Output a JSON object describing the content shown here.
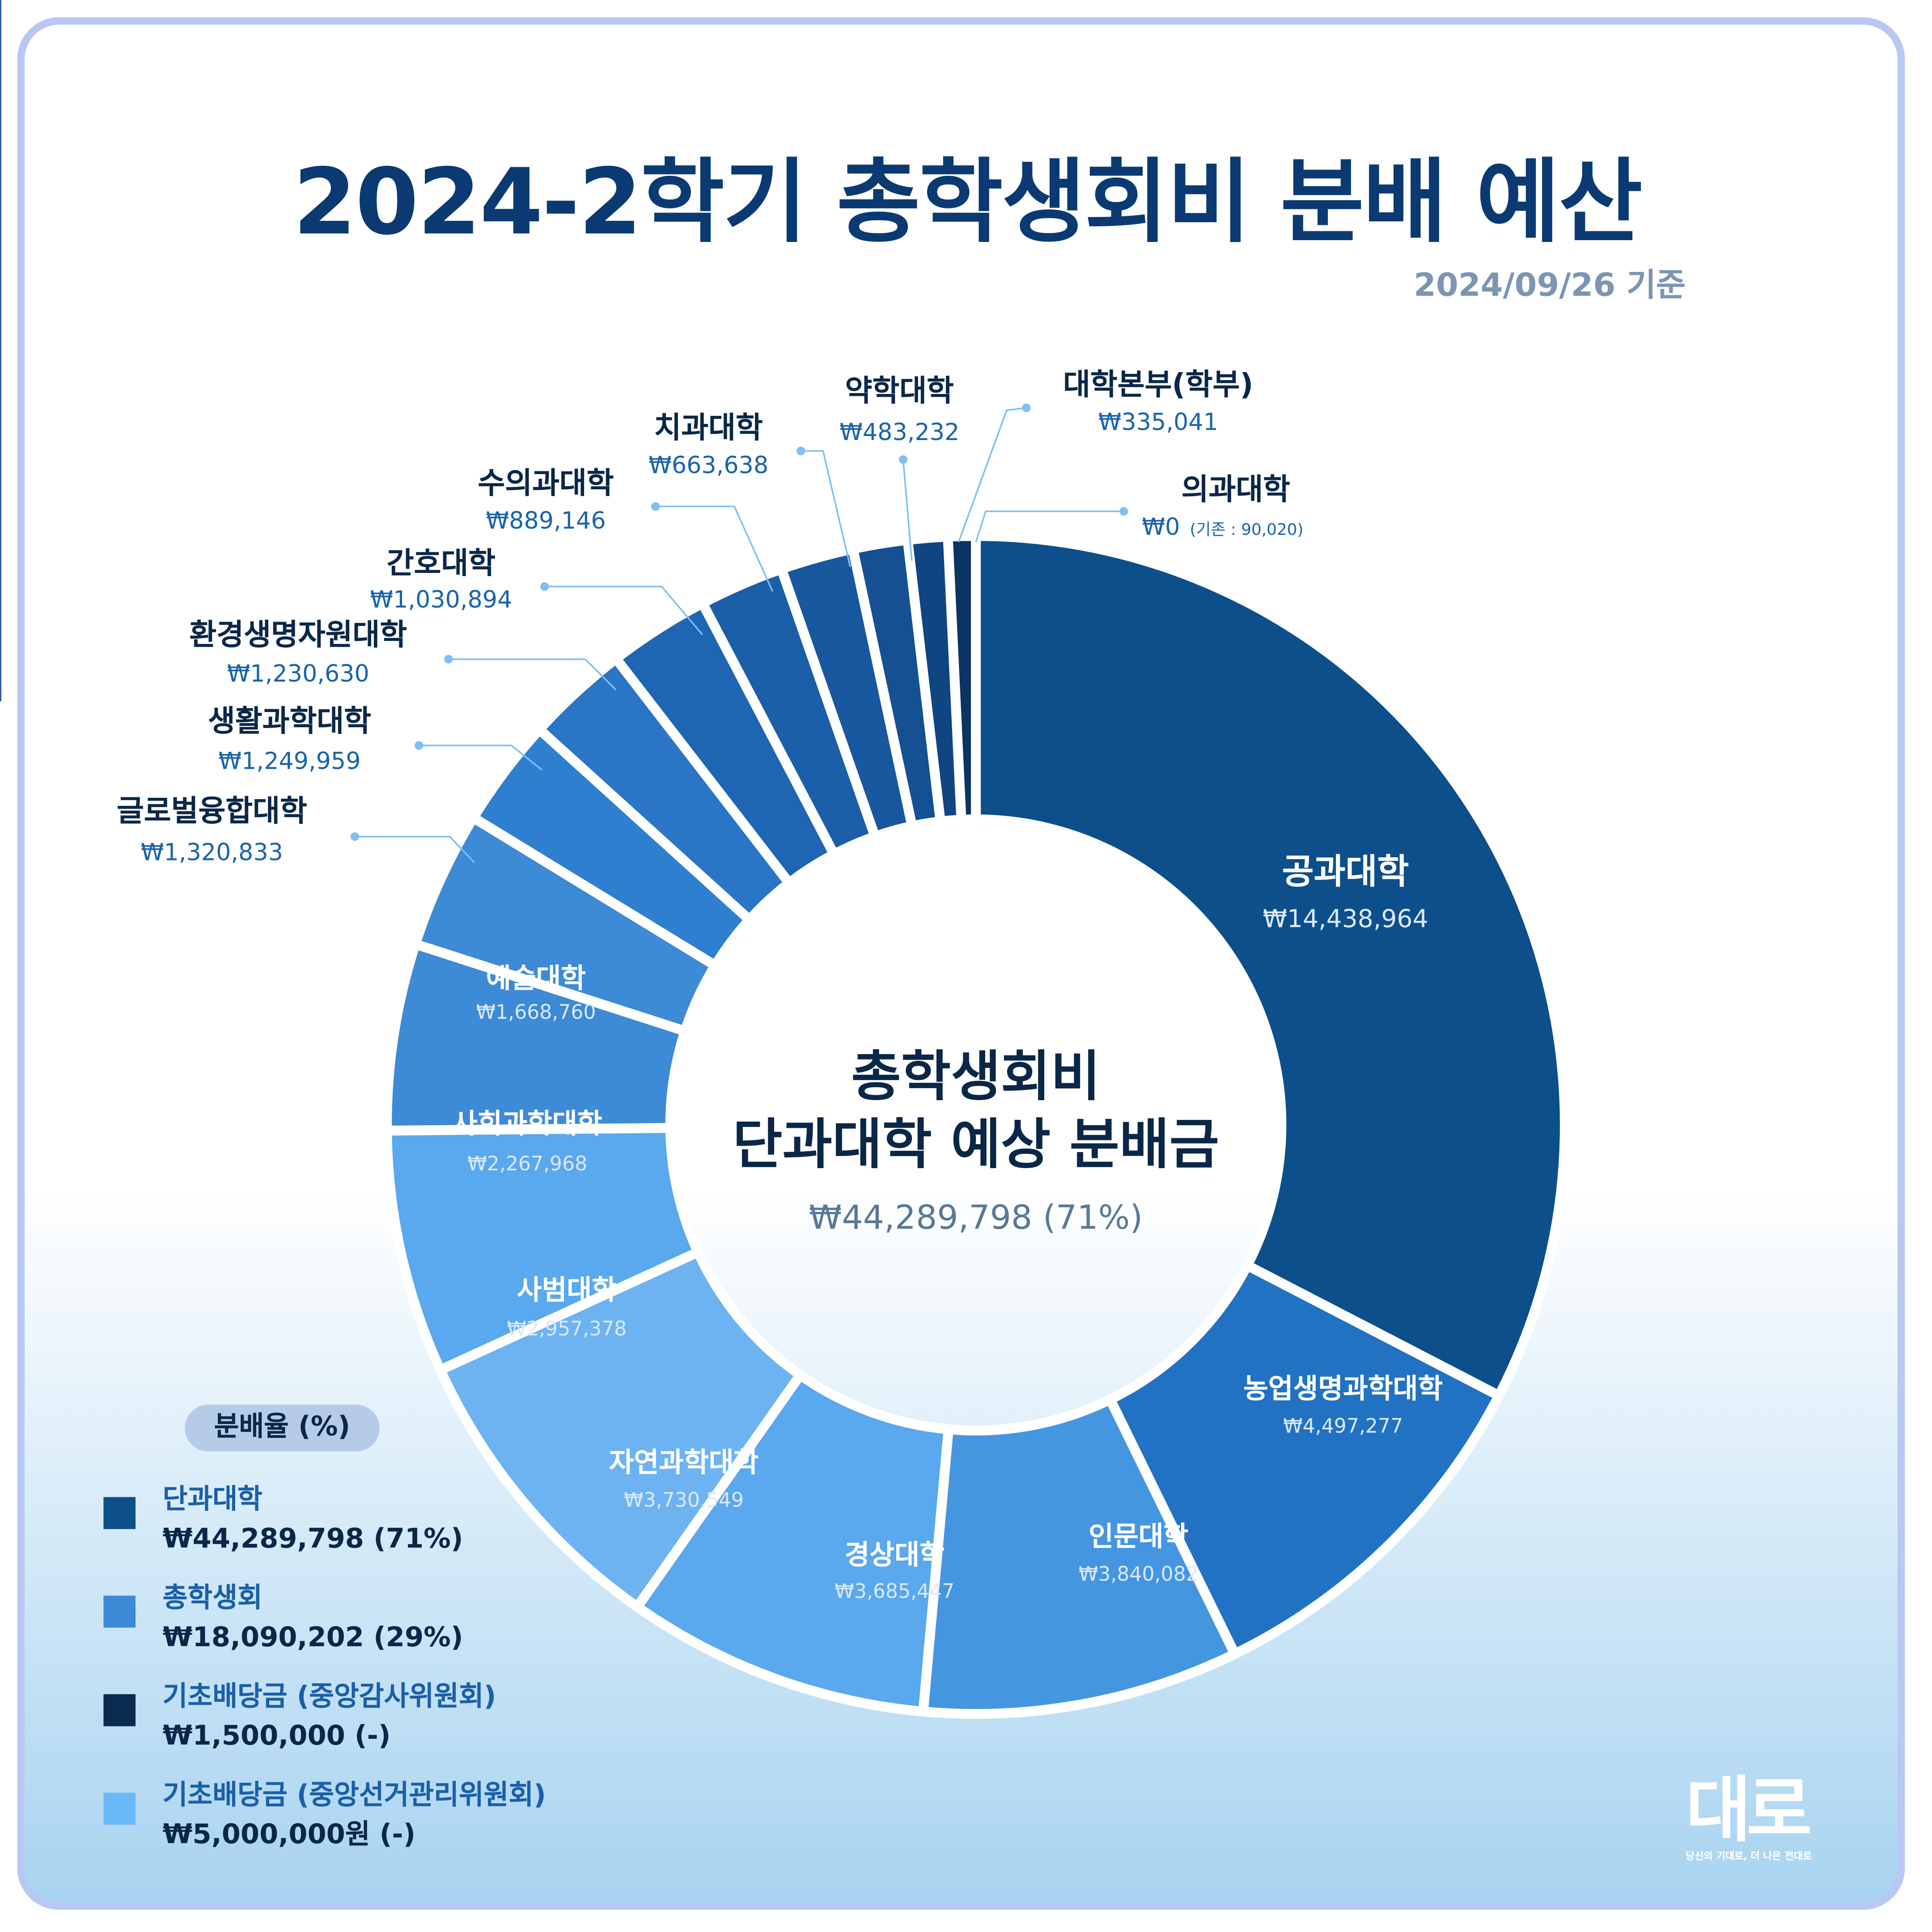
{
  "title": "2024-2학기 총학생회비 분배 예산",
  "date": "2024/09/26 기준",
  "center": {
    "line1": "총학생회비",
    "line2": "단과대학 예상 분배금",
    "total": "₩44,289,798 (71%)"
  },
  "chart_data": {
    "type": "pie",
    "title": "2024-2학기 총학생회비 분배 예산",
    "variant": "donut",
    "labels": [
      "공과대학",
      "농업생명과학대학",
      "인문대학",
      "경상대학",
      "자연과학대학",
      "사범대학",
      "사회과학대학",
      "예술대학",
      "글로벌융합대학",
      "생활과학대학",
      "환경생명자원대학",
      "간호대학",
      "수의과대학",
      "치과대학",
      "약학대학",
      "대학본부(학부)",
      "의과대학"
    ],
    "values": [
      14438964,
      4497277,
      3840082,
      3685447,
      3730549,
      2957378,
      2267968,
      1668760,
      1320833,
      1249959,
      1230630,
      1030894,
      889146,
      663638,
      483232,
      335041,
      0
    ],
    "value_labels": [
      "₩14,438,964",
      "₩4,497,277",
      "₩3,840,082",
      "₩3,685,447",
      "₩3,730,549",
      "₩2,957,378",
      "₩2,267,968",
      "₩1,668,760",
      "₩1,320,833",
      "₩1,249,959",
      "₩1,230,630",
      "₩1,030,894",
      "₩889,146",
      "₩663,638",
      "₩483,232",
      "₩335,041",
      "₩0"
    ],
    "colors": [
      "#0d4f8b",
      "#2272c3",
      "#4596e0",
      "#5aa8ee",
      "#6db3f2",
      "#5aa8ee",
      "#3d8ad6",
      "#3d8ad6",
      "#2f7fd0",
      "#2a75c6",
      "#1e66b3",
      "#1a5fa8",
      "#17589e",
      "#145092",
      "#0f4580",
      "#0b3463",
      "#0b2a4f"
    ],
    "notes": {
      "의과대학": "(기존 : 90,020)"
    }
  },
  "legend": {
    "title": "분배율 (%)",
    "items": [
      {
        "label": "단과대학",
        "value": "₩44,289,798 (71%)",
        "color": "#0d4f8b"
      },
      {
        "label": "총학생회",
        "value": "₩18,090,202 (29%)",
        "color": "#3d8ad6"
      },
      {
        "label": "기초배당금 (중앙감사위원회)",
        "value": "₩1,500,000 (-)",
        "color": "#0b2a4f"
      },
      {
        "label": "기초배당금 (중앙선거관리위원회)",
        "value": "₩5,000,000원 (-)",
        "color": "#6bb8f7"
      }
    ]
  },
  "logo": {
    "mark": "대로",
    "tagline": "당신의 기대로, 더 나은 전대로"
  }
}
